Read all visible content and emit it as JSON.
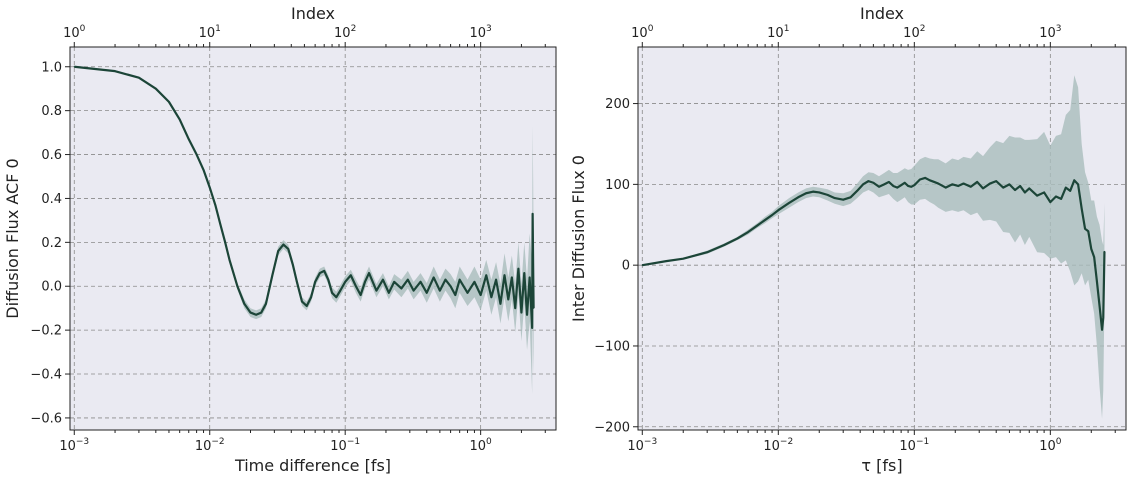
{
  "chart_data": [
    {
      "type": "line",
      "xscale": "log",
      "x_ticks": [
        0.001,
        0.01,
        0.1,
        1
      ],
      "x_tick_labels": [
        "10^-3",
        "10^-2",
        "10^-1",
        "10^0"
      ],
      "xlim": [
        0.00093,
        3.6
      ],
      "ylim": [
        -0.655,
        1.09
      ],
      "y_ticks": [
        -0.6,
        -0.4,
        -0.2,
        0.0,
        0.2,
        0.4,
        0.6,
        0.8,
        1.0
      ],
      "y_tick_labels": [
        "−0.6",
        "−0.4",
        "−0.2",
        "0.0",
        "0.2",
        "0.4",
        "0.6",
        "0.8",
        "1.0"
      ],
      "xlabel": "Time difference [fs]",
      "ylabel": "Diffusion Flux ACF 0",
      "top_axis_label": "Index",
      "top_ticks": [
        1,
        10,
        100,
        1000
      ],
      "top_tick_labels": [
        "10^0",
        "10^1",
        "10^2",
        "10^3"
      ],
      "top_index_per_x": 1000,
      "grid": true,
      "line_color": "#1c4538",
      "band_color": "#a9bdbb",
      "background": "#eaeaf2",
      "series": [
        {
          "x": [
            0.001,
            0.002,
            0.003,
            0.004,
            0.005,
            0.006,
            0.007,
            0.008,
            0.009,
            0.01,
            0.011,
            0.012,
            0.013,
            0.014,
            0.016,
            0.018,
            0.02,
            0.022,
            0.024,
            0.026,
            0.029,
            0.032,
            0.035,
            0.038,
            0.041,
            0.044,
            0.048,
            0.052,
            0.056,
            0.06,
            0.065,
            0.07,
            0.075,
            0.08,
            0.086,
            0.092,
            0.1,
            0.11,
            0.12,
            0.13,
            0.14,
            0.15,
            0.17,
            0.19,
            0.21,
            0.23,
            0.26,
            0.29,
            0.32,
            0.36,
            0.4,
            0.45,
            0.5,
            0.55,
            0.6,
            0.65,
            0.7,
            0.8,
            0.9,
            1.0,
            1.1,
            1.2,
            1.3,
            1.4,
            1.5,
            1.6,
            1.7,
            1.8,
            1.9,
            2.0,
            2.1,
            2.2,
            2.3,
            2.4,
            2.42,
            2.44,
            2.46
          ],
          "values": [
            1.0,
            0.98,
            0.95,
            0.9,
            0.84,
            0.76,
            0.67,
            0.6,
            0.53,
            0.45,
            0.37,
            0.28,
            0.2,
            0.12,
            0.0,
            -0.08,
            -0.12,
            -0.13,
            -0.12,
            -0.08,
            0.05,
            0.16,
            0.19,
            0.17,
            0.1,
            0.02,
            -0.07,
            -0.09,
            -0.05,
            0.02,
            0.06,
            0.07,
            0.03,
            -0.03,
            -0.05,
            -0.02,
            0.02,
            0.05,
            0.0,
            -0.04,
            0.02,
            0.06,
            -0.02,
            0.03,
            -0.03,
            0.02,
            -0.01,
            0.03,
            -0.02,
            0.02,
            -0.03,
            0.04,
            -0.02,
            0.03,
            0.0,
            -0.04,
            0.03,
            -0.03,
            0.02,
            -0.04,
            0.05,
            -0.05,
            0.03,
            -0.08,
            0.05,
            -0.06,
            0.04,
            -0.1,
            0.08,
            -0.12,
            0.06,
            -0.13,
            0.04,
            -0.19,
            0.33,
            0.1,
            -0.1
          ],
          "band": [
            0.0,
            0.0,
            0.0,
            0.0,
            0.0,
            0.0,
            0.005,
            0.005,
            0.01,
            0.01,
            0.01,
            0.01,
            0.01,
            0.012,
            0.015,
            0.02,
            0.02,
            0.02,
            0.02,
            0.02,
            0.02,
            0.02,
            0.02,
            0.02,
            0.02,
            0.02,
            0.02,
            0.02,
            0.02,
            0.02,
            0.02,
            0.02,
            0.02,
            0.025,
            0.025,
            0.025,
            0.025,
            0.025,
            0.03,
            0.03,
            0.03,
            0.03,
            0.03,
            0.03,
            0.03,
            0.035,
            0.04,
            0.04,
            0.04,
            0.04,
            0.045,
            0.05,
            0.05,
            0.05,
            0.055,
            0.06,
            0.06,
            0.06,
            0.07,
            0.07,
            0.07,
            0.08,
            0.08,
            0.09,
            0.1,
            0.1,
            0.1,
            0.11,
            0.12,
            0.13,
            0.14,
            0.16,
            0.2,
            0.3,
            0.4,
            0.4,
            0.3
          ]
        }
      ]
    },
    {
      "type": "line",
      "xscale": "log",
      "x_ticks": [
        0.001,
        0.01,
        0.1,
        1
      ],
      "x_tick_labels": [
        "10^-3",
        "10^-2",
        "10^-1",
        "10^0"
      ],
      "xlim": [
        0.00093,
        3.6
      ],
      "ylim": [
        -204,
        270
      ],
      "y_ticks": [
        -200,
        -100,
        0,
        100,
        200
      ],
      "y_tick_labels": [
        "−200",
        "−100",
        "0",
        "100",
        "200"
      ],
      "xlabel": "τ [fs]",
      "ylabel": "Inter Diffusion Flux 0",
      "top_axis_label": "Index",
      "top_ticks": [
        1,
        10,
        100,
        1000
      ],
      "top_tick_labels": [
        "10^0",
        "10^1",
        "10^2",
        "10^3"
      ],
      "top_index_per_x": 1000,
      "grid": true,
      "line_color": "#1c4538",
      "band_color": "#a9bdbb",
      "background": "#eaeaf2",
      "series": [
        {
          "x": [
            0.001,
            0.0015,
            0.002,
            0.003,
            0.004,
            0.005,
            0.006,
            0.007,
            0.008,
            0.009,
            0.01,
            0.012,
            0.014,
            0.016,
            0.018,
            0.02,
            0.023,
            0.026,
            0.03,
            0.034,
            0.038,
            0.042,
            0.046,
            0.05,
            0.055,
            0.06,
            0.065,
            0.07,
            0.075,
            0.08,
            0.085,
            0.09,
            0.095,
            0.1,
            0.11,
            0.12,
            0.13,
            0.14,
            0.15,
            0.17,
            0.19,
            0.21,
            0.23,
            0.26,
            0.29,
            0.32,
            0.36,
            0.4,
            0.45,
            0.5,
            0.55,
            0.6,
            0.65,
            0.7,
            0.8,
            0.9,
            1.0,
            1.1,
            1.2,
            1.3,
            1.4,
            1.5,
            1.6,
            1.7,
            1.8,
            1.9,
            2.0,
            2.1,
            2.2,
            2.3,
            2.4,
            2.45,
            2.5
          ],
          "values": [
            0,
            5,
            8,
            16,
            25,
            33,
            41,
            49,
            56,
            62,
            68,
            77,
            84,
            89,
            91,
            90,
            87,
            83,
            81,
            84,
            92,
            100,
            104,
            102,
            97,
            100,
            103,
            98,
            96,
            99,
            102,
            98,
            97,
            99,
            106,
            108,
            105,
            103,
            101,
            96,
            100,
            98,
            101,
            97,
            103,
            95,
            101,
            104,
            96,
            100,
            93,
            98,
            90,
            95,
            86,
            90,
            78,
            85,
            82,
            96,
            92,
            105,
            100,
            70,
            45,
            42,
            20,
            10,
            -20,
            -50,
            -80,
            -65,
            17
          ],
          "band": [
            0,
            1,
            1,
            2,
            2,
            2,
            3,
            3,
            4,
            4,
            5,
            6,
            6,
            6,
            6,
            6,
            7,
            7,
            8,
            8,
            9,
            10,
            11,
            12,
            13,
            14,
            15,
            16,
            18,
            18,
            18,
            20,
            22,
            24,
            25,
            26,
            27,
            28,
            30,
            30,
            32,
            32,
            33,
            35,
            38,
            40,
            45,
            50,
            55,
            60,
            65,
            60,
            65,
            60,
            70,
            75,
            70,
            75,
            80,
            90,
            100,
            130,
            120,
            80,
            70,
            60,
            60,
            70,
            80,
            100,
            110,
            90,
            60
          ]
        }
      ]
    }
  ]
}
